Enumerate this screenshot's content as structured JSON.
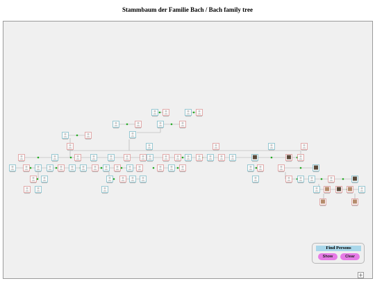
{
  "page": {
    "title": "Stammbaum der Familie Bach / Bach family tree"
  },
  "find_persons": {
    "title": "Find Persons",
    "show_label": "Show",
    "clear_label": "Clear"
  },
  "zoom": {
    "symbol": "+"
  },
  "colors": {
    "canvas_background": "#f0f0f0",
    "male_card_border": "#6fb4c4",
    "female_card_border": "#d98a8a",
    "link_line": "#a8a8a8",
    "union_dot": "#22aa22",
    "find_title_bg": "#a9d7ea",
    "button_bg": "#e67be6"
  },
  "icons": {
    "person_silhouette": "person-silhouette-icon",
    "portrait": "portrait-icon",
    "union_marker": "union-dot-icon",
    "zoom_in": "plus-icon"
  }
}
